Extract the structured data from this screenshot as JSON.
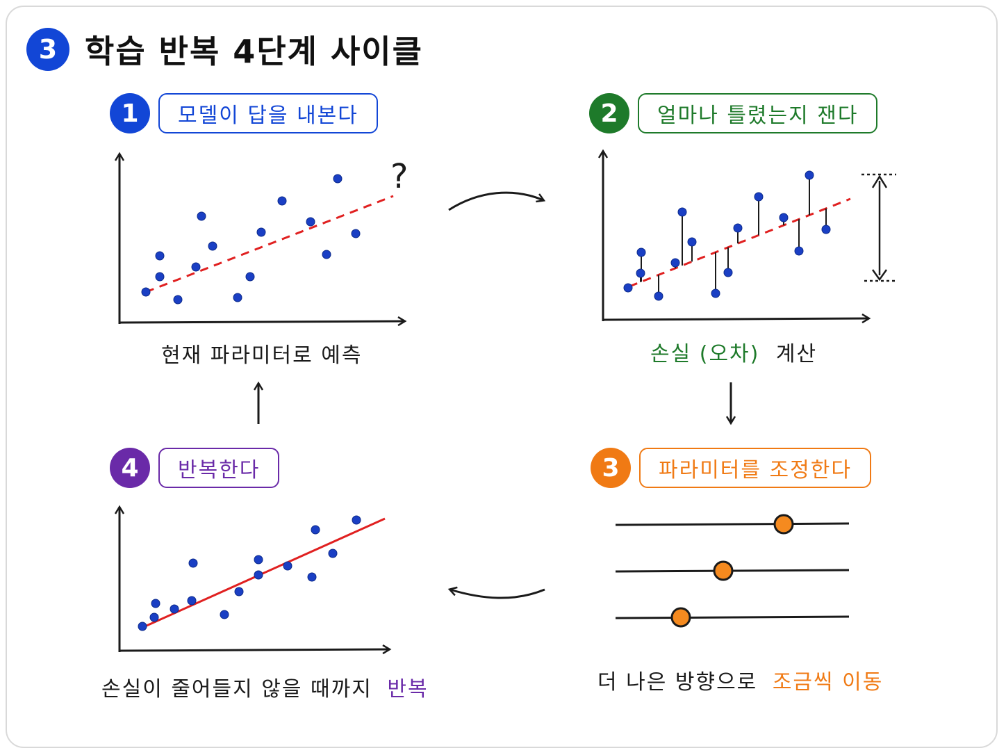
{
  "title": {
    "badge": "3",
    "text": "학습 반복 4단계 사이클"
  },
  "steps": [
    {
      "num": "1",
      "label": "모델이 답을 내본다",
      "color": "#1246d6",
      "caption": "현재 파라미터로 예측"
    },
    {
      "num": "2",
      "label": "얼마나 틀렸는지 잰다",
      "color": "#1e7a2a",
      "caption_loss": "손실 (오차)",
      "caption_rest": "계산"
    },
    {
      "num": "3",
      "label": "파라미터를 조정한다",
      "color": "#f07a14",
      "caption_plain": "더 나은 방향으로",
      "caption_highlight": "조금씩 이동"
    },
    {
      "num": "4",
      "label": "반복한다",
      "color": "#6a2aa8",
      "caption_plain": "손실이 줄어들지 않을 때까지",
      "caption_highlight": "반복"
    }
  ],
  "panel1_question": "?",
  "colors": {
    "point": "#1a3fc4",
    "trend": "#e02020",
    "slider_knob": "#f58a1f"
  }
}
